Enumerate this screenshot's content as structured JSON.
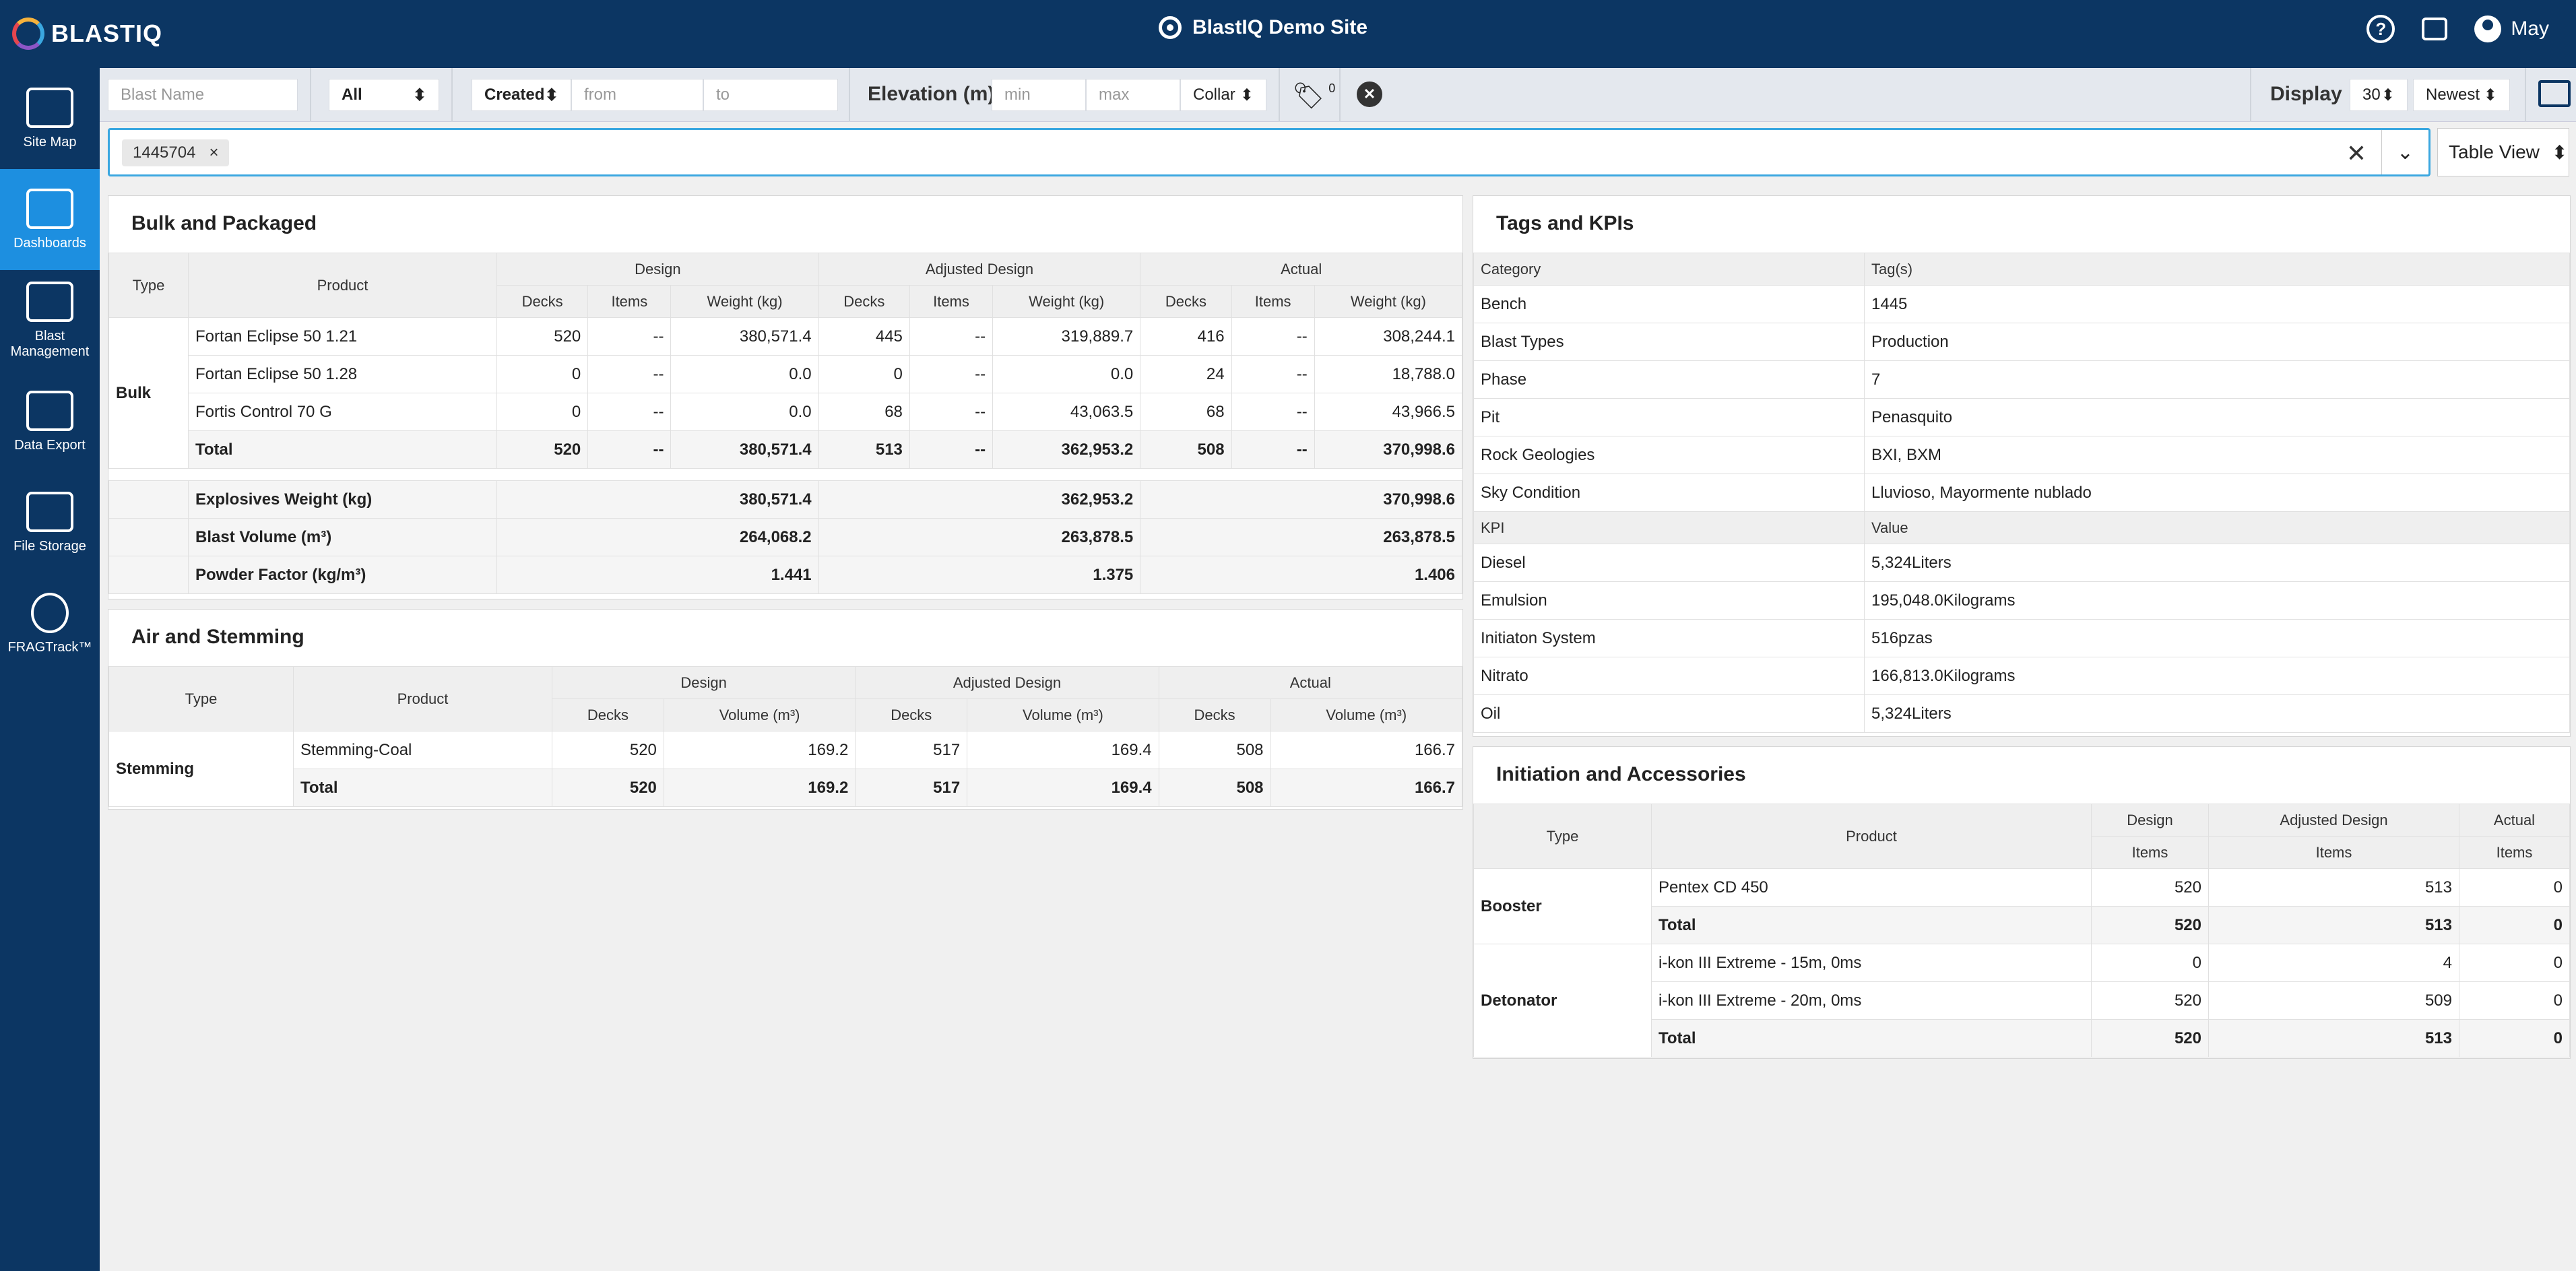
{
  "app": {
    "logo_text": "BLASTIQ",
    "site_name": "BlastIQ Demo Site",
    "user": "May",
    "help_symbol": "?"
  },
  "nav": [
    {
      "label": "Site Map",
      "icon": "map-icon"
    },
    {
      "label": "Dashboards",
      "icon": "chart-icon",
      "active": true
    },
    {
      "label": "Blast Management",
      "icon": "list-icon"
    },
    {
      "label": "Data Export",
      "icon": "export-icon"
    },
    {
      "label": "File Storage",
      "icon": "folder-icon"
    },
    {
      "label": "FRAGTrack™",
      "icon": "fragtrack-icon"
    }
  ],
  "filters": {
    "blast_name_placeholder": "Blast Name",
    "status_value": "All",
    "date_type": "Created",
    "from_placeholder": "from",
    "to_placeholder": "to",
    "elevation_label": "Elevation (m)",
    "min_placeholder": "min",
    "max_placeholder": "max",
    "elevation_ref": "Collar",
    "tag_count": "0",
    "display_label": "Display",
    "display_count": "30",
    "sort": "Newest"
  },
  "search": {
    "chip": "1445704",
    "view": "Table View"
  },
  "bulk": {
    "title": "Bulk and Packaged",
    "h_type": "Type",
    "h_product": "Product",
    "g1": "Design",
    "g2": "Adjusted Design",
    "g3": "Actual",
    "sub": [
      "Decks",
      "Items",
      "Weight (kg)"
    ],
    "type": "Bulk",
    "rows": [
      [
        "Fortan Eclipse 50 1.21",
        "520",
        "--",
        "380,571.4",
        "445",
        "--",
        "319,889.7",
        "416",
        "--",
        "308,244.1"
      ],
      [
        "Fortan Eclipse 50 1.28",
        "0",
        "--",
        "0.0",
        "0",
        "--",
        "0.0",
        "24",
        "--",
        "18,788.0"
      ],
      [
        "Fortis Control 70 G",
        "0",
        "--",
        "0.0",
        "68",
        "--",
        "43,063.5",
        "68",
        "--",
        "43,966.5"
      ]
    ],
    "total": [
      "Total",
      "520",
      "--",
      "380,571.4",
      "513",
      "--",
      "362,953.2",
      "508",
      "--",
      "370,998.6"
    ],
    "summary": [
      [
        "Explosives Weight (kg)",
        "380,571.4",
        "362,953.2",
        "370,998.6"
      ],
      [
        "Blast Volume (m³)",
        "264,068.2",
        "263,878.5",
        "263,878.5"
      ],
      [
        "Powder Factor (kg/m³)",
        "1.441",
        "1.375",
        "1.406"
      ]
    ]
  },
  "air": {
    "title": "Air and Stemming",
    "h_type": "Type",
    "h_product": "Product",
    "g1": "Design",
    "g2": "Adjusted Design",
    "g3": "Actual",
    "sub": [
      "Decks",
      "Volume (m³)"
    ],
    "type": "Stemming",
    "row": [
      "Stemming-Coal",
      "520",
      "169.2",
      "517",
      "169.4",
      "508",
      "166.7"
    ],
    "total": [
      "Total",
      "520",
      "169.2",
      "517",
      "169.4",
      "508",
      "166.7"
    ]
  },
  "tags": {
    "title": "Tags and KPIs",
    "h_cat": "Category",
    "h_tags": "Tag(s)",
    "rows": [
      [
        "Bench",
        "1445"
      ],
      [
        "Blast Types",
        "Production"
      ],
      [
        "Phase",
        "7"
      ],
      [
        "Pit",
        "Penasquito"
      ],
      [
        "Rock Geologies",
        "BXI, BXM"
      ],
      [
        "Sky Condition",
        "Lluvioso, Mayormente nublado"
      ]
    ],
    "h_kpi": "KPI",
    "h_value": "Value",
    "kpis": [
      [
        "Diesel",
        "5,324Liters"
      ],
      [
        "Emulsion",
        "195,048.0Kilograms"
      ],
      [
        "Initiaton System",
        "516pzas"
      ],
      [
        "Nitrato",
        "166,813.0Kilograms"
      ],
      [
        "Oil",
        "5,324Liters"
      ]
    ]
  },
  "init": {
    "title": "Initiation and Accessories",
    "h_type": "Type",
    "h_product": "Product",
    "g1": "Design",
    "g2": "Adjusted Design",
    "g3": "Actual",
    "sub": "Items",
    "booster": {
      "type": "Booster",
      "rows": [
        [
          "Pentex CD 450",
          "520",
          "513",
          "0"
        ]
      ],
      "total": [
        "Total",
        "520",
        "513",
        "0"
      ]
    },
    "detonator": {
      "type": "Detonator",
      "rows": [
        [
          "i-kon III Extreme - 15m, 0ms",
          "0",
          "4",
          "0"
        ],
        [
          "i-kon III Extreme - 20m, 0ms",
          "520",
          "509",
          "0"
        ]
      ],
      "total": [
        "Total",
        "520",
        "513",
        "0"
      ]
    }
  }
}
